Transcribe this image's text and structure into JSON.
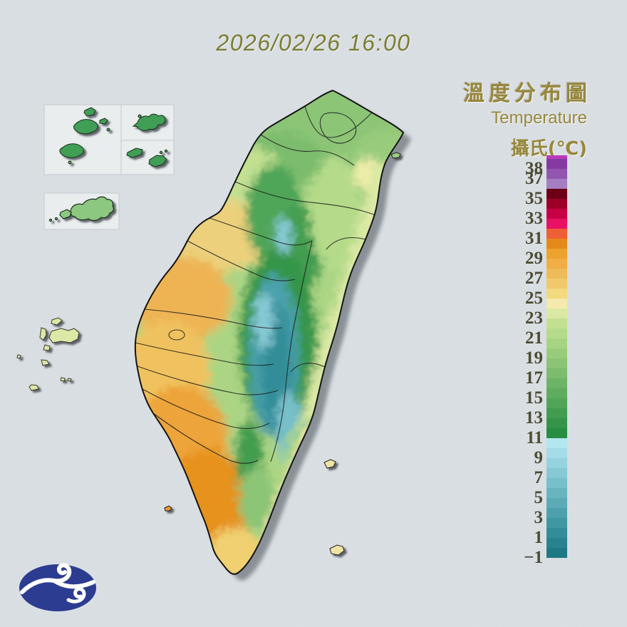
{
  "header": {
    "datetime": "2026/02/26 16:00"
  },
  "legend": {
    "title_zh": "溫度分布圖",
    "title_en": "Temperature",
    "unit": "攝氏(℃)",
    "ticks": [
      {
        "label": "38",
        "value": 38
      },
      {
        "label": "37",
        "value": 37
      },
      {
        "label": "35",
        "value": 35
      },
      {
        "label": "33",
        "value": 33
      },
      {
        "label": "31",
        "value": 31
      },
      {
        "label": "29",
        "value": 29
      },
      {
        "label": "27",
        "value": 27
      },
      {
        "label": "25",
        "value": 25
      },
      {
        "label": "23",
        "value": 23
      },
      {
        "label": "21",
        "value": 21
      },
      {
        "label": "19",
        "value": 19
      },
      {
        "label": "17",
        "value": 17
      },
      {
        "label": "15",
        "value": 15
      },
      {
        "label": "13",
        "value": 13
      },
      {
        "label": "11",
        "value": 11
      },
      {
        "label": "9",
        "value": 9
      },
      {
        "label": "7",
        "value": 7
      },
      {
        "label": "5",
        "value": 5
      },
      {
        "label": "3",
        "value": 3
      },
      {
        "label": "1",
        "value": 1
      },
      {
        "label": "−1",
        "value": -1
      }
    ],
    "colorbar": {
      "cap": {
        "range": ">39",
        "color": "#b83ab8"
      },
      "segments": [
        {
          "t": 38,
          "c": "#8639a2"
        },
        {
          "t": 37,
          "c": "#9256ae"
        },
        {
          "t": 36,
          "c": "#a57dc1"
        },
        {
          "t": 35,
          "c": "#6b0016"
        },
        {
          "t": 34,
          "c": "#9c0026"
        },
        {
          "t": 33,
          "c": "#c80045"
        },
        {
          "t": 32,
          "c": "#ea1164"
        },
        {
          "t": 31,
          "c": "#ee5f35"
        },
        {
          "t": 30,
          "c": "#e5891b"
        },
        {
          "t": 29,
          "c": "#eda22e"
        },
        {
          "t": 28,
          "c": "#f0ae45"
        },
        {
          "t": 27,
          "c": "#eebb58"
        },
        {
          "t": 26,
          "c": "#f0c96c"
        },
        {
          "t": 25,
          "c": "#f3d97f"
        },
        {
          "t": 24,
          "c": "#f5eaae"
        },
        {
          "t": 23,
          "c": "#dbe9a4"
        },
        {
          "t": 22,
          "c": "#c3e091"
        },
        {
          "t": 21,
          "c": "#b5db8a"
        },
        {
          "t": 20,
          "c": "#a7d483"
        },
        {
          "t": 19,
          "c": "#98cc7b"
        },
        {
          "t": 18,
          "c": "#8ac474"
        },
        {
          "t": 17,
          "c": "#7bbc6d"
        },
        {
          "t": 16,
          "c": "#6cb466"
        },
        {
          "t": 15,
          "c": "#5ead5f"
        },
        {
          "t": 14,
          "c": "#50a558"
        },
        {
          "t": 13,
          "c": "#429d50"
        },
        {
          "t": 12,
          "c": "#349549"
        },
        {
          "t": 11,
          "c": "#268d41"
        },
        {
          "t": 10,
          "c": "#b2e7ef"
        },
        {
          "t": 9,
          "c": "#a4dde8"
        },
        {
          "t": 8,
          "c": "#95d3de"
        },
        {
          "t": 7,
          "c": "#86c9d4"
        },
        {
          "t": 6,
          "c": "#77bfca"
        },
        {
          "t": 5,
          "c": "#68b5c0"
        },
        {
          "t": 4,
          "c": "#5aabb6"
        },
        {
          "t": 3,
          "c": "#4ca1ac"
        },
        {
          "t": 2,
          "c": "#3f97a2"
        },
        {
          "t": 1,
          "c": "#338d98"
        },
        {
          "t": 0,
          "c": "#28838e"
        },
        {
          "t": -1,
          "c": "#1e7984"
        }
      ]
    }
  },
  "icons": {
    "logo": "cwb-cloud-swirl-logo"
  },
  "colors": {
    "background": "#cfd6da",
    "text-olive": "#7b7d33",
    "legend-gold": "#97873d",
    "tick-color": "#4c4c33",
    "logo-blue": "#2c3c90"
  }
}
